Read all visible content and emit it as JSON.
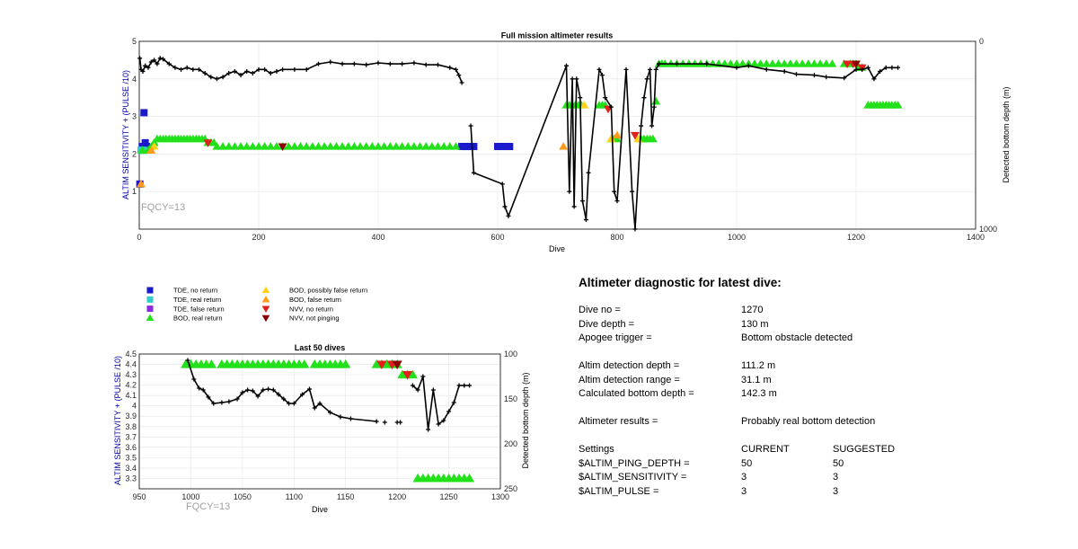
{
  "colors": {
    "tde_no_return": "#1a1acc",
    "tde_real_return": "#33cccc",
    "tde_false_return": "#8a2be2",
    "bod_real_return": "#22e01a",
    "bod_possibly_false": "#ffd21a",
    "bod_false": "#ff9a1a",
    "nvv_no_return": "#e0201a",
    "nvv_not_pinging": "#8b0000",
    "depth_line": "#000000",
    "fqcy_text": "#a0a0a0"
  },
  "top_chart": {
    "title": "Full mission altimeter results",
    "ylabel_left": "ALTIM SENSITIVITY + (PULSE /10)",
    "ylabel_right": "Detected bottom depth (m)",
    "xlabel": "Dive",
    "fqcy": "FQCY=13"
  },
  "bottom_chart": {
    "title": "Last 50 dives",
    "ylabel_left": "ALTIM SENSITIVITY + (PULSE /10)",
    "ylabel_right": "Detected bottom depth (m)",
    "xlabel": "Dive",
    "fqcy": "FQCY=13"
  },
  "legend": [
    {
      "label": "TDE, no return",
      "marker": "square",
      "color": "#1a1acc"
    },
    {
      "label": "TDE, real return",
      "marker": "square",
      "color": "#33cccc"
    },
    {
      "label": "TDE, false return",
      "marker": "square",
      "color": "#8a2be2"
    },
    {
      "label": "BOD, real return",
      "marker": "triangle-up",
      "color": "#22e01a"
    },
    {
      "label": "BOD, possibly false return",
      "marker": "triangle-up",
      "color": "#ffd21a"
    },
    {
      "label": "BOD, false return",
      "marker": "triangle-up",
      "color": "#ff9a1a"
    },
    {
      "label": "NVV, no return",
      "marker": "triangle-down",
      "color": "#e0201a"
    },
    {
      "label": "NVV, not pinging",
      "marker": "triangle-down",
      "color": "#8b0000"
    }
  ],
  "diagnostic": {
    "heading": "Altimeter diagnostic for latest dive:",
    "dive_no_label": "Dive no =",
    "dive_no": "1270",
    "dive_depth_label": "Dive depth =",
    "dive_depth": "130 m",
    "apogee_label": "Apogee trigger =",
    "apogee": "Bottom obstacle detected",
    "altim_det_depth_label": "Altim detection depth =",
    "altim_det_depth": "111.2 m",
    "altim_det_range_label": "Altim detection range =",
    "altim_det_range": "31.1 m",
    "calc_bottom_label": "Calculated bottom depth =",
    "calc_bottom": "142.3 m",
    "results_label": "Altimeter results =",
    "results": "Probably real bottom detection",
    "settings_label": "Settings",
    "current_label": "CURRENT",
    "suggested_label": "SUGGESTED",
    "settings": [
      {
        "name": "$ALTIM_PING_DEPTH =",
        "current": "50",
        "suggested": "50"
      },
      {
        "name": "$ALTIM_SENSITIVITY =",
        "current": "3",
        "suggested": "3"
      },
      {
        "name": "$ALTIM_PULSE =",
        "current": "3",
        "suggested": "3"
      }
    ]
  },
  "chart_data": [
    {
      "type": "scatter",
      "title": "Full mission altimeter results",
      "xlabel": "Dive",
      "ylabel": "ALTIM SENSITIVITY + (PULSE /10)",
      "ylabel_right": "Detected bottom depth (m)",
      "xlim": [
        0,
        1400
      ],
      "ylim": [
        0,
        5
      ],
      "ylim_right": [
        0,
        1000
      ],
      "right_axis_reversed": true,
      "xticks": [
        0,
        200,
        400,
        600,
        800,
        1000,
        1200,
        1400
      ],
      "yticks": [
        1,
        2,
        3,
        4,
        5
      ],
      "yticks_right": [
        0,
        1000
      ],
      "grid": true,
      "annotation": "FQCY=13",
      "series": [
        {
          "name": "TDE, no return",
          "marker": "square",
          "color": "#1a1acc",
          "x": [
            1,
            5,
            8,
            10,
            12,
            540,
            545,
            550,
            555,
            560,
            600,
            605,
            610,
            615,
            620
          ],
          "y": [
            1.2,
            2.2,
            3.1,
            2.3,
            2.2,
            2.2,
            2.2,
            2.2,
            2.2,
            2.2,
            2.2,
            2.2,
            2.2,
            2.2,
            2.2
          ]
        },
        {
          "name": "TDE, real return",
          "marker": "square",
          "color": "#33cccc",
          "x": [
            3,
            7
          ],
          "y": [
            2.1,
            2.1
          ]
        },
        {
          "name": "BOD, real return",
          "marker": "triangle-up",
          "color": "#22e01a",
          "x": [
            5,
            15,
            20,
            25,
            30,
            35,
            40,
            45,
            50,
            55,
            60,
            65,
            70,
            75,
            80,
            85,
            90,
            95,
            100,
            105,
            110,
            115,
            120,
            125,
            130,
            140,
            150,
            160,
            170,
            180,
            190,
            200,
            210,
            220,
            230,
            240,
            250,
            260,
            270,
            280,
            290,
            300,
            310,
            320,
            330,
            340,
            350,
            360,
            370,
            380,
            390,
            400,
            410,
            420,
            430,
            440,
            450,
            460,
            470,
            480,
            490,
            500,
            510,
            520,
            530,
            715,
            720,
            725,
            730,
            735,
            740,
            770,
            775,
            780,
            790,
            795,
            800,
            840,
            845,
            850,
            855,
            860,
            865,
            870,
            875,
            880,
            890,
            900,
            910,
            920,
            930,
            940,
            950,
            960,
            970,
            980,
            990,
            1000,
            1010,
            1020,
            1030,
            1040,
            1050,
            1060,
            1070,
            1080,
            1090,
            1100,
            1110,
            1120,
            1130,
            1140,
            1150,
            1160,
            1180,
            1190,
            1195,
            1200,
            1205,
            1210,
            1220,
            1225,
            1230,
            1235,
            1240,
            1245,
            1250,
            1255,
            1260,
            1265,
            1270
          ],
          "y": [
            2.1,
            2.1,
            2.2,
            2.3,
            2.4,
            2.4,
            2.4,
            2.4,
            2.4,
            2.4,
            2.4,
            2.4,
            2.4,
            2.4,
            2.4,
            2.4,
            2.4,
            2.4,
            2.4,
            2.4,
            2.4,
            2.3,
            2.3,
            2.3,
            2.2,
            2.2,
            2.2,
            2.2,
            2.2,
            2.2,
            2.2,
            2.2,
            2.2,
            2.2,
            2.2,
            2.2,
            2.2,
            2.2,
            2.2,
            2.2,
            2.2,
            2.2,
            2.2,
            2.2,
            2.2,
            2.2,
            2.2,
            2.2,
            2.2,
            2.2,
            2.2,
            2.2,
            2.2,
            2.2,
            2.2,
            2.2,
            2.2,
            2.2,
            2.2,
            2.2,
            2.2,
            2.2,
            2.2,
            2.2,
            2.2,
            3.3,
            3.3,
            3.3,
            3.3,
            3.3,
            3.3,
            3.3,
            3.3,
            3.3,
            2.4,
            2.4,
            2.4,
            2.4,
            2.4,
            2.4,
            2.4,
            2.4,
            3.4,
            4.4,
            4.4,
            4.4,
            4.4,
            4.4,
            4.4,
            4.4,
            4.4,
            4.4,
            4.4,
            4.4,
            4.4,
            4.4,
            4.4,
            4.4,
            4.4,
            4.4,
            4.4,
            4.4,
            4.4,
            4.4,
            4.4,
            4.4,
            4.4,
            4.4,
            4.4,
            4.4,
            4.4,
            4.4,
            4.4,
            4.4,
            4.4,
            4.4,
            4.4,
            4.4,
            4.3,
            4.3,
            3.3,
            3.3,
            3.3,
            3.3,
            3.3,
            3.3,
            3.3,
            3.3,
            3.3,
            3.3,
            3.3
          ]
        },
        {
          "name": "BOD, possibly false return",
          "marker": "triangle-up",
          "color": "#ffd21a",
          "x": [
            25,
            745,
            790,
            835
          ],
          "y": [
            2.2,
            3.3,
            2.4,
            2.4
          ]
        },
        {
          "name": "BOD, false return",
          "marker": "triangle-up",
          "color": "#ff9a1a",
          "x": [
            3,
            20,
            710,
            800
          ],
          "y": [
            1.2,
            2.1,
            2.2,
            2.5
          ]
        },
        {
          "name": "NVV, no return",
          "marker": "triangle-down",
          "color": "#e0201a",
          "x": [
            115,
            785,
            830,
            1185,
            1195,
            1210
          ],
          "y": [
            2.3,
            3.2,
            2.5,
            4.4,
            4.4,
            4.3
          ]
        },
        {
          "name": "NVV, not pinging",
          "marker": "triangle-down",
          "color": "#8b0000",
          "x": [
            240,
            1200
          ],
          "y": [
            2.2,
            4.4
          ]
        },
        {
          "name": "Detected bottom depth",
          "axis": "right",
          "marker": "plus-line",
          "color": "#000000",
          "x": [
            1,
            3,
            6,
            10,
            15,
            20,
            25,
            30,
            35,
            40,
            50,
            60,
            70,
            80,
            90,
            100,
            110,
            120,
            130,
            140,
            150,
            160,
            170,
            180,
            190,
            200,
            210,
            220,
            230,
            240,
            260,
            280,
            300,
            320,
            340,
            360,
            380,
            400,
            420,
            440,
            460,
            480,
            500,
            520,
            530,
            535,
            540
          ],
          "y": [
            90,
            150,
            160,
            130,
            140,
            110,
            100,
            120,
            90,
            95,
            120,
            140,
            150,
            140,
            150,
            150,
            170,
            190,
            200,
            190,
            170,
            160,
            180,
            160,
            170,
            150,
            150,
            170,
            160,
            150,
            150,
            150,
            120,
            110,
            120,
            120,
            125,
            115,
            120,
            120,
            115,
            125,
            125,
            140,
            150,
            180,
            220
          ]
        },
        {
          "name": "Detected bottom depth (scattered)",
          "axis": "right",
          "marker": "plus-line",
          "color": "#000000",
          "x": [
            555,
            560,
            608,
            612,
            618,
            715,
            720,
            725,
            728,
            732,
            738,
            742,
            748,
            752,
            770,
            775,
            780,
            790,
            795,
            800,
            815,
            825,
            830,
            840,
            845,
            850,
            855,
            858,
            862,
            865,
            870
          ],
          "y": [
            450,
            700,
            760,
            880,
            930,
            130,
            800,
            200,
            880,
            200,
            300,
            850,
            950,
            700,
            150,
            180,
            300,
            350,
            800,
            850,
            150,
            800,
            1000,
            450,
            300,
            200,
            150,
            450,
            350,
            150,
            120
          ]
        },
        {
          "name": "Detected bottom depth (late)",
          "axis": "right",
          "marker": "plus-line",
          "color": "#000000",
          "x": [
            870,
            900,
            950,
            1000,
            1020,
            1050,
            1080,
            1100,
            1130,
            1150,
            1180,
            1200,
            1210,
            1220,
            1230,
            1240,
            1250,
            1260,
            1270
          ],
          "y": [
            120,
            120,
            120,
            140,
            130,
            150,
            160,
            175,
            180,
            190,
            195,
            150,
            150,
            140,
            200,
            160,
            140,
            140,
            140
          ]
        }
      ]
    },
    {
      "type": "scatter",
      "title": "Last 50 dives",
      "xlabel": "Dive",
      "ylabel": "ALTIM SENSITIVITY + (PULSE /10)",
      "ylabel_right": "Detected bottom depth (m)",
      "xlim": [
        950,
        1300
      ],
      "ylim": [
        3.2,
        4.5
      ],
      "ylim_right": [
        100,
        250
      ],
      "right_axis_reversed": true,
      "xticks": [
        950,
        1000,
        1050,
        1100,
        1150,
        1200,
        1250,
        1300
      ],
      "yticks": [
        3.3,
        3.4,
        3.5,
        3.6,
        3.7,
        3.8,
        3.9,
        4,
        4.1,
        4.2,
        4.3,
        4.4,
        4.5
      ],
      "yticks_right": [
        100,
        150,
        200,
        250
      ],
      "grid": true,
      "annotation": "FQCY=13",
      "series": [
        {
          "name": "BOD, real return",
          "marker": "triangle-up",
          "color": "#22e01a",
          "x": [
            995,
            1000,
            1005,
            1010,
            1015,
            1020,
            1030,
            1035,
            1040,
            1045,
            1050,
            1055,
            1060,
            1065,
            1070,
            1075,
            1080,
            1085,
            1090,
            1095,
            1100,
            1105,
            1110,
            1120,
            1125,
            1130,
            1135,
            1140,
            1145,
            1150,
            1180,
            1185,
            1190,
            1195,
            1200,
            1205,
            1210,
            1215,
            1220,
            1225,
            1230,
            1235,
            1240,
            1245,
            1250,
            1255,
            1260,
            1265,
            1270
          ],
          "y": [
            4.4,
            4.4,
            4.4,
            4.4,
            4.4,
            4.4,
            4.4,
            4.4,
            4.4,
            4.4,
            4.4,
            4.4,
            4.4,
            4.4,
            4.4,
            4.4,
            4.4,
            4.4,
            4.4,
            4.4,
            4.4,
            4.4,
            4.4,
            4.4,
            4.4,
            4.4,
            4.4,
            4.4,
            4.4,
            4.4,
            4.4,
            4.4,
            4.4,
            4.4,
            4.4,
            4.3,
            4.3,
            4.3,
            3.3,
            3.3,
            3.3,
            3.3,
            3.3,
            3.3,
            3.3,
            3.3,
            3.3,
            3.3,
            3.3
          ]
        },
        {
          "name": "NVV, no return",
          "marker": "triangle-down",
          "color": "#e0201a",
          "x": [
            1185,
            1195,
            1210
          ],
          "y": [
            4.4,
            4.4,
            4.3
          ]
        },
        {
          "name": "NVV, not pinging",
          "marker": "triangle-down",
          "color": "#8b0000",
          "x": [
            1200
          ],
          "y": [
            4.4
          ]
        },
        {
          "name": "Detected bottom depth",
          "axis": "right",
          "marker": "plus-line",
          "color": "#000000",
          "x": [
            997,
            1003,
            1008,
            1012,
            1017,
            1022,
            1030,
            1037,
            1045,
            1050,
            1055,
            1060,
            1065,
            1070,
            1075,
            1080,
            1085,
            1090,
            1095,
            1100,
            1108,
            1115,
            1120,
            1125,
            1135,
            1145,
            1155,
            1180
          ],
          "y": [
            107,
            128,
            138,
            140,
            148,
            155,
            154,
            153,
            150,
            143,
            140,
            141,
            147,
            140,
            139,
            140,
            145,
            150,
            155,
            155,
            145,
            139,
            160,
            155,
            165,
            170,
            172,
            175
          ]
        },
        {
          "name": "Detected bottom depth (isolated)",
          "axis": "right",
          "marker": "plus",
          "color": "#000000",
          "x": [
            1188,
            1200,
            1203
          ],
          "y": [
            176,
            176,
            176
          ]
        },
        {
          "name": "Detected bottom depth (end)",
          "axis": "right",
          "marker": "plus-line",
          "color": "#000000",
          "x": [
            1215,
            1220,
            1225,
            1230,
            1235,
            1240,
            1245,
            1250,
            1255,
            1260,
            1265,
            1270
          ],
          "y": [
            135,
            140,
            125,
            184,
            140,
            178,
            174,
            164,
            154,
            135,
            135,
            135
          ]
        }
      ]
    }
  ]
}
